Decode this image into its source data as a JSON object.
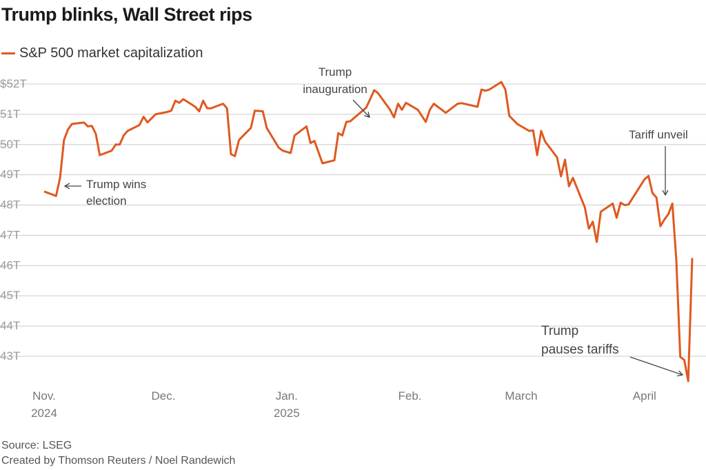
{
  "title": "Trump blinks, Wall Street rips",
  "source": "Source: LSEG",
  "credit": "Created by Thomson Reuters / Noel Randewich",
  "colors": {
    "line": "#e0581e",
    "grid": "#cccccc",
    "annot": "#444444"
  },
  "chart_data": {
    "type": "line",
    "series": [
      {
        "name": "S&P 500 market capitalization",
        "unit": "trillion USD",
        "points": [
          [
            "2024-11-01",
            48.45
          ],
          [
            "2024-11-04",
            48.3
          ],
          [
            "2024-11-05",
            48.9
          ],
          [
            "2024-11-06",
            50.15
          ],
          [
            "2024-11-07",
            50.5
          ],
          [
            "2024-11-08",
            50.68
          ],
          [
            "2024-11-11",
            50.73
          ],
          [
            "2024-11-12",
            50.6
          ],
          [
            "2024-11-13",
            50.62
          ],
          [
            "2024-11-14",
            50.35
          ],
          [
            "2024-11-15",
            49.65
          ],
          [
            "2024-11-18",
            49.8
          ],
          [
            "2024-11-19",
            50.0
          ],
          [
            "2024-11-20",
            50.0
          ],
          [
            "2024-11-21",
            50.3
          ],
          [
            "2024-11-22",
            50.45
          ],
          [
            "2024-11-25",
            50.65
          ],
          [
            "2024-11-26",
            50.92
          ],
          [
            "2024-11-27",
            50.73
          ],
          [
            "2024-11-29",
            51.0
          ],
          [
            "2024-12-02",
            51.08
          ],
          [
            "2024-12-03",
            51.12
          ],
          [
            "2024-12-04",
            51.45
          ],
          [
            "2024-12-05",
            51.38
          ],
          [
            "2024-12-06",
            51.5
          ],
          [
            "2024-12-09",
            51.25
          ],
          [
            "2024-12-10",
            51.1
          ],
          [
            "2024-12-11",
            51.45
          ],
          [
            "2024-12-12",
            51.2
          ],
          [
            "2024-12-13",
            51.2
          ],
          [
            "2024-12-16",
            51.35
          ],
          [
            "2024-12-17",
            51.2
          ],
          [
            "2024-12-18",
            49.68
          ],
          [
            "2024-12-19",
            49.62
          ],
          [
            "2024-12-20",
            50.15
          ],
          [
            "2024-12-23",
            50.55
          ],
          [
            "2024-12-24",
            51.12
          ],
          [
            "2024-12-26",
            51.1
          ],
          [
            "2024-12-27",
            50.55
          ],
          [
            "2024-12-30",
            49.9
          ],
          [
            "2024-12-31",
            49.8
          ],
          [
            "2025-01-02",
            49.72
          ],
          [
            "2025-01-03",
            50.3
          ],
          [
            "2025-01-06",
            50.6
          ],
          [
            "2025-01-07",
            50.05
          ],
          [
            "2025-01-08",
            50.12
          ],
          [
            "2025-01-10",
            49.38
          ],
          [
            "2025-01-13",
            49.48
          ],
          [
            "2025-01-14",
            50.38
          ],
          [
            "2025-01-15",
            50.3
          ],
          [
            "2025-01-16",
            50.75
          ],
          [
            "2025-01-17",
            50.77
          ],
          [
            "2025-01-21",
            51.22
          ],
          [
            "2025-01-22",
            51.5
          ],
          [
            "2025-01-23",
            51.8
          ],
          [
            "2025-01-24",
            51.7
          ],
          [
            "2025-01-27",
            51.15
          ],
          [
            "2025-01-28",
            50.9
          ],
          [
            "2025-01-29",
            51.35
          ],
          [
            "2025-01-30",
            51.15
          ],
          [
            "2025-01-31",
            51.38
          ],
          [
            "2025-02-03",
            51.15
          ],
          [
            "2025-02-05",
            50.75
          ],
          [
            "2025-02-06",
            51.15
          ],
          [
            "2025-02-07",
            51.35
          ],
          [
            "2025-02-10",
            51.05
          ],
          [
            "2025-02-12",
            51.25
          ],
          [
            "2025-02-13",
            51.35
          ],
          [
            "2025-02-14",
            51.37
          ],
          [
            "2025-02-18",
            51.25
          ],
          [
            "2025-02-19",
            51.82
          ],
          [
            "2025-02-20",
            51.78
          ],
          [
            "2025-02-21",
            51.82
          ],
          [
            "2025-02-24",
            52.07
          ],
          [
            "2025-02-25",
            51.82
          ],
          [
            "2025-02-26",
            50.95
          ],
          [
            "2025-02-28",
            50.68
          ],
          [
            "2025-03-03",
            50.45
          ],
          [
            "2025-03-04",
            50.47
          ],
          [
            "2025-03-05",
            49.65
          ],
          [
            "2025-03-06",
            50.45
          ],
          [
            "2025-03-07",
            50.1
          ],
          [
            "2025-03-10",
            49.58
          ],
          [
            "2025-03-11",
            48.95
          ],
          [
            "2025-03-12",
            49.5
          ],
          [
            "2025-03-13",
            48.62
          ],
          [
            "2025-03-14",
            48.9
          ],
          [
            "2025-03-17",
            47.92
          ],
          [
            "2025-03-18",
            47.22
          ],
          [
            "2025-03-19",
            47.45
          ],
          [
            "2025-03-20",
            46.78
          ],
          [
            "2025-03-21",
            47.78
          ],
          [
            "2025-03-24",
            48.05
          ],
          [
            "2025-03-25",
            47.58
          ],
          [
            "2025-03-26",
            48.08
          ],
          [
            "2025-03-27",
            48.0
          ],
          [
            "2025-03-28",
            48.02
          ],
          [
            "2025-04-01",
            48.85
          ],
          [
            "2025-04-02",
            48.96
          ],
          [
            "2025-04-03",
            48.4
          ],
          [
            "2025-04-04",
            48.25
          ],
          [
            "2025-04-05",
            47.3
          ],
          [
            "2025-04-06",
            47.52
          ],
          [
            "2025-04-07",
            47.7
          ],
          [
            "2025-04-08",
            48.05
          ],
          [
            "2025-04-09",
            46.2
          ],
          [
            "2025-04-10",
            42.98
          ],
          [
            "2025-04-11",
            42.88
          ],
          [
            "2025-04-12",
            42.18
          ],
          [
            "2025-04-13",
            46.25
          ]
        ]
      }
    ],
    "y_ticks": [
      "$52T",
      "51T",
      "50T",
      "49T",
      "48T",
      "47T",
      "46T",
      "45T",
      "44T",
      "43T"
    ],
    "y_tick_values": [
      52,
      51,
      50,
      49,
      48,
      47,
      46,
      45,
      44,
      43
    ],
    "x_ticks": [
      {
        "date": "2024-11-01",
        "label": "Nov.",
        "sub": "2024"
      },
      {
        "date": "2024-12-01",
        "label": "Dec.",
        "sub": ""
      },
      {
        "date": "2025-01-01",
        "label": "Jan.",
        "sub": "2025"
      },
      {
        "date": "2025-02-01",
        "label": "Feb.",
        "sub": ""
      },
      {
        "date": "2025-03-01",
        "label": "March",
        "sub": ""
      },
      {
        "date": "2025-04-01",
        "label": "April",
        "sub": ""
      }
    ],
    "ylim": [
      42.1,
      52.3
    ],
    "grid": true,
    "legend": "top-left",
    "annotations": [
      {
        "lines": [
          "Trump wins",
          "election"
        ],
        "date": "2024-11-05",
        "value": 48.65
      },
      {
        "lines": [
          "Trump",
          "inauguration"
        ],
        "date": "2025-01-20",
        "value": 50.8
      },
      {
        "lines": [
          "Tariff unveil"
        ],
        "date": "2025-04-06",
        "value": 48.3
      },
      {
        "lines": [
          "Trump",
          "pauses tariffs"
        ],
        "date": "2025-04-12",
        "value": 42.6
      }
    ]
  }
}
